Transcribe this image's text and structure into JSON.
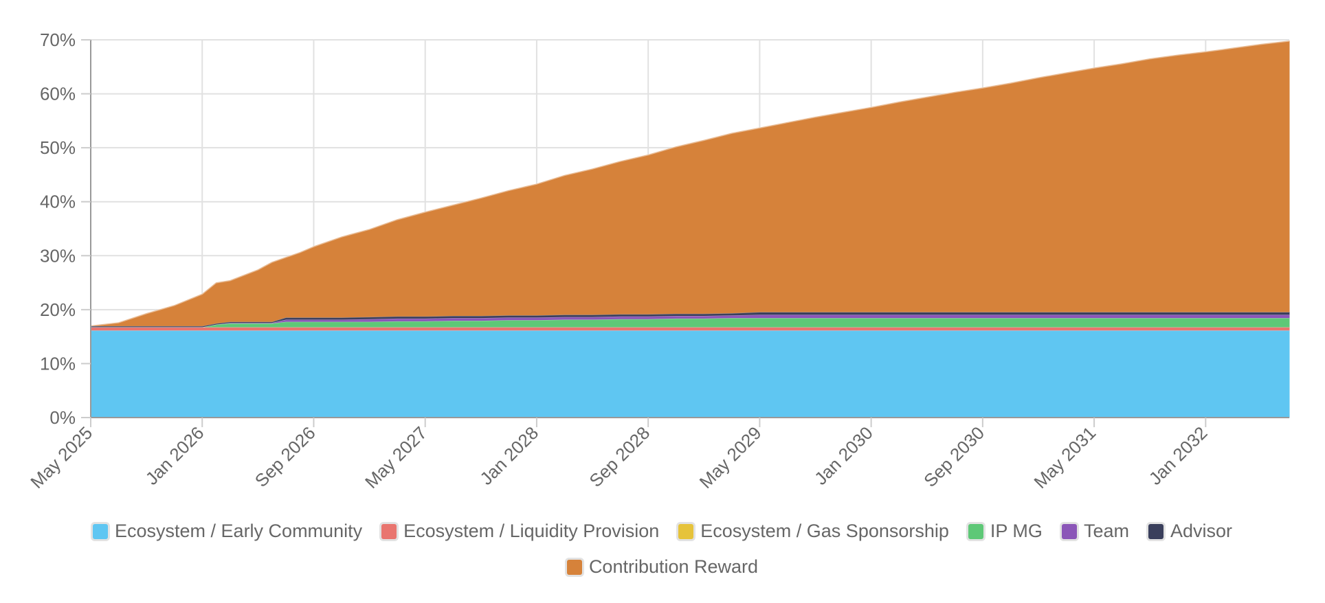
{
  "chart_data": {
    "type": "area",
    "stacked": true,
    "x": [
      "May 2025",
      "Jul 2025",
      "Sep 2025",
      "Nov 2025",
      "Jan 2026",
      "Feb 2026",
      "Mar 2026",
      "May 2026",
      "Jun 2026",
      "Jul 2026",
      "Aug 2026",
      "Sep 2026",
      "Nov 2026",
      "Jan 2027",
      "Mar 2027",
      "May 2027",
      "Jul 2027",
      "Sep 2027",
      "Nov 2027",
      "Jan 2028",
      "Mar 2028",
      "May 2028",
      "Jul 2028",
      "Sep 2028",
      "Nov 2028",
      "Jan 2029",
      "Mar 2029",
      "May 2029",
      "Jul 2029",
      "Sep 2029",
      "Nov 2029",
      "Jan 2030",
      "Mar 2030",
      "May 2030",
      "Jul 2030",
      "Sep 2030",
      "Nov 2030",
      "Jan 2031",
      "Mar 2031",
      "May 2031",
      "Jul 2031",
      "Sep 2031",
      "Nov 2031",
      "Jan 2032",
      "Mar 2032",
      "May 2032",
      "Jul 2032"
    ],
    "x_tick_labels": [
      "May 2025",
      "Jan 2026",
      "Sep 2026",
      "May 2027",
      "Jan 2028",
      "Sep 2028",
      "May 2029",
      "Jan 2030",
      "Sep 2030",
      "May 2031",
      "Jan 2032"
    ],
    "y_tick_labels": [
      "0%",
      "10%",
      "20%",
      "30%",
      "40%",
      "50%",
      "60%",
      "70%"
    ],
    "ylim": [
      0,
      70
    ],
    "y_unit": "%",
    "grid": true,
    "legend_position": "bottom",
    "series": [
      {
        "name": "Ecosystem / Early Community",
        "color": "#5fc6f2",
        "values": [
          16.2,
          16.2,
          16.2,
          16.2,
          16.2,
          16.2,
          16.2,
          16.2,
          16.2,
          16.2,
          16.2,
          16.2,
          16.2,
          16.2,
          16.2,
          16.2,
          16.2,
          16.2,
          16.2,
          16.2,
          16.2,
          16.2,
          16.2,
          16.2,
          16.2,
          16.2,
          16.2,
          16.2,
          16.2,
          16.2,
          16.2,
          16.2,
          16.2,
          16.2,
          16.2,
          16.2,
          16.2,
          16.2,
          16.2,
          16.2,
          16.2,
          16.2,
          16.2,
          16.2,
          16.2,
          16.2,
          16.2
        ]
      },
      {
        "name": "Ecosystem / Liquidity Provision",
        "color": "#e9756f",
        "values": [
          0.6,
          0.6,
          0.6,
          0.6,
          0.6,
          0.6,
          0.6,
          0.6,
          0.6,
          0.6,
          0.6,
          0.6,
          0.6,
          0.6,
          0.6,
          0.6,
          0.6,
          0.6,
          0.6,
          0.6,
          0.6,
          0.6,
          0.6,
          0.6,
          0.6,
          0.6,
          0.6,
          0.6,
          0.6,
          0.6,
          0.6,
          0.6,
          0.6,
          0.6,
          0.6,
          0.6,
          0.6,
          0.6,
          0.6,
          0.6,
          0.6,
          0.6,
          0.6,
          0.6,
          0.6,
          0.6,
          0.6
        ]
      },
      {
        "name": "Ecosystem / Gas Sponsorship",
        "color": "#e6c33b",
        "values": [
          0,
          0,
          0,
          0,
          0,
          0,
          0,
          0,
          0,
          0,
          0,
          0,
          0,
          0,
          0,
          0,
          0,
          0,
          0,
          0,
          0,
          0,
          0,
          0,
          0,
          0,
          0,
          0,
          0,
          0,
          0,
          0,
          0,
          0,
          0,
          0,
          0,
          0,
          0,
          0,
          0,
          0,
          0,
          0,
          0,
          0,
          0
        ]
      },
      {
        "name": "IP MG",
        "color": "#5ec877",
        "values": [
          0,
          0,
          0,
          0,
          0,
          0.5,
          0.7,
          0.7,
          0.7,
          1.0,
          1.0,
          1.0,
          1.0,
          1.0,
          1.1,
          1.1,
          1.2,
          1.2,
          1.3,
          1.3,
          1.4,
          1.4,
          1.5,
          1.5,
          1.6,
          1.6,
          1.7,
          1.7,
          1.7,
          1.7,
          1.7,
          1.7,
          1.7,
          1.7,
          1.7,
          1.7,
          1.7,
          1.7,
          1.7,
          1.7,
          1.7,
          1.7,
          1.7,
          1.7,
          1.7,
          1.7,
          1.7
        ]
      },
      {
        "name": "Team",
        "color": "#8b56b8",
        "values": [
          0,
          0,
          0,
          0,
          0,
          0,
          0.1,
          0.1,
          0.1,
          0.4,
          0.4,
          0.4,
          0.4,
          0.5,
          0.5,
          0.5,
          0.5,
          0.5,
          0.5,
          0.5,
          0.5,
          0.5,
          0.5,
          0.5,
          0.5,
          0.5,
          0.5,
          0.6,
          0.6,
          0.6,
          0.6,
          0.6,
          0.6,
          0.6,
          0.6,
          0.6,
          0.6,
          0.6,
          0.6,
          0.6,
          0.6,
          0.6,
          0.6,
          0.6,
          0.6,
          0.6,
          0.6
        ]
      },
      {
        "name": "Advisor",
        "color": "#3a3f5c",
        "values": [
          0.2,
          0.2,
          0.2,
          0.2,
          0.2,
          0.2,
          0.2,
          0.2,
          0.2,
          0.4,
          0.4,
          0.4,
          0.4,
          0.4,
          0.4,
          0.4,
          0.4,
          0.4,
          0.4,
          0.4,
          0.4,
          0.4,
          0.4,
          0.4,
          0.4,
          0.4,
          0.4,
          0.5,
          0.5,
          0.5,
          0.5,
          0.5,
          0.5,
          0.5,
          0.5,
          0.5,
          0.5,
          0.5,
          0.5,
          0.5,
          0.5,
          0.5,
          0.5,
          0.5,
          0.5,
          0.5,
          0.5
        ]
      },
      {
        "name": "Contribution Reward",
        "color": "#d6823a",
        "values": [
          0,
          0.6,
          2.3,
          3.8,
          5.9,
          7.5,
          7.6,
          9.6,
          11.0,
          11.1,
          12.0,
          13.1,
          14.9,
          16.2,
          17.9,
          19.3,
          20.5,
          21.8,
          23.1,
          24.3,
          25.8,
          27.0,
          28.3,
          29.5,
          30.9,
          32.1,
          33.3,
          34.1,
          35.1,
          36.1,
          37.0,
          37.9,
          38.9,
          39.8,
          40.7,
          41.5,
          42.4,
          43.4,
          44.3,
          45.2,
          46.0,
          46.9,
          47.6,
          48.2,
          48.9,
          49.6,
          50.2
        ]
      }
    ]
  }
}
